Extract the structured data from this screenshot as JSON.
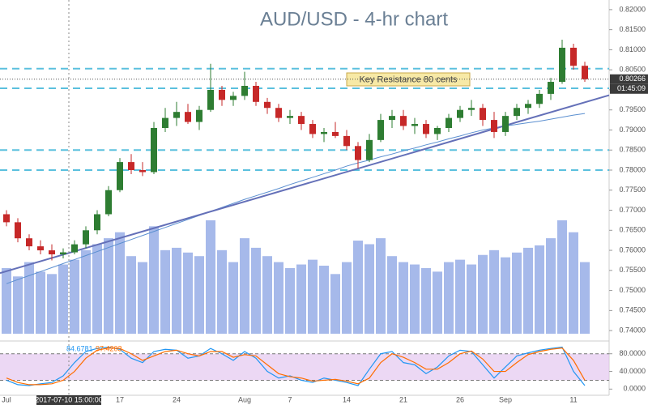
{
  "chart_data": {
    "type": "candlestick",
    "title": "AUD/USD - 4-hr chart",
    "categories": [
      "Jul",
      null,
      null,
      null,
      null,
      null,
      null,
      null,
      null,
      null,
      "17",
      null,
      null,
      null,
      null,
      "24",
      null,
      null,
      null,
      null,
      null,
      "Aug",
      null,
      null,
      null,
      "7",
      null,
      null,
      null,
      null,
      "14",
      null,
      null,
      null,
      null,
      "21",
      null,
      null,
      null,
      null,
      "26",
      null,
      null,
      null,
      "Sep",
      null,
      null,
      null,
      null,
      null,
      "11",
      null
    ],
    "open": [
      0.769,
      0.767,
      0.763,
      0.761,
      0.76,
      0.759,
      0.7595,
      0.7615,
      0.765,
      0.769,
      0.775,
      0.782,
      0.78,
      0.7795,
      0.7905,
      0.793,
      0.7945,
      0.792,
      0.795,
      0.8,
      0.7975,
      0.7985,
      0.801,
      0.797,
      0.7955,
      0.793,
      0.7935,
      0.7915,
      0.789,
      0.7895,
      0.7885,
      0.786,
      0.7825,
      0.7875,
      0.7925,
      0.7935,
      0.791,
      0.7915,
      0.789,
      0.7905,
      0.793,
      0.795,
      0.7955,
      0.7925,
      0.7895,
      0.7935,
      0.7955,
      0.7965,
      0.799,
      0.802,
      0.8105,
      0.806
    ],
    "high": [
      0.77,
      0.768,
      0.764,
      0.7625,
      0.7615,
      0.7605,
      0.7625,
      0.766,
      0.77,
      0.776,
      0.783,
      0.784,
      0.782,
      0.792,
      0.7955,
      0.797,
      0.7965,
      0.796,
      0.8065,
      0.801,
      0.7995,
      0.8045,
      0.802,
      0.798,
      0.7965,
      0.795,
      0.7945,
      0.7925,
      0.7905,
      0.792,
      0.79,
      0.787,
      0.789,
      0.794,
      0.795,
      0.795,
      0.793,
      0.7925,
      0.791,
      0.794,
      0.796,
      0.7975,
      0.7965,
      0.7945,
      0.7945,
      0.7965,
      0.7975,
      0.8,
      0.803,
      0.8125,
      0.8115,
      0.807
    ],
    "low": [
      0.766,
      0.762,
      0.76,
      0.759,
      0.7575,
      0.758,
      0.759,
      0.7605,
      0.764,
      0.7685,
      0.7745,
      0.779,
      0.7785,
      0.779,
      0.7895,
      0.791,
      0.7915,
      0.79,
      0.7945,
      0.796,
      0.796,
      0.7975,
      0.796,
      0.794,
      0.792,
      0.7915,
      0.79,
      0.788,
      0.787,
      0.788,
      0.785,
      0.7805,
      0.782,
      0.787,
      0.7905,
      0.79,
      0.789,
      0.788,
      0.7875,
      0.7895,
      0.792,
      0.7935,
      0.791,
      0.788,
      0.7885,
      0.7925,
      0.794,
      0.7955,
      0.7975,
      0.8015,
      0.805,
      0.802
    ],
    "close": [
      0.767,
      0.763,
      0.761,
      0.76,
      0.759,
      0.7595,
      0.7615,
      0.765,
      0.769,
      0.775,
      0.782,
      0.78,
      0.7795,
      0.7905,
      0.793,
      0.7945,
      0.792,
      0.795,
      0.8,
      0.7975,
      0.7985,
      0.801,
      0.797,
      0.7955,
      0.793,
      0.7935,
      0.7915,
      0.789,
      0.7895,
      0.7885,
      0.786,
      0.7825,
      0.7875,
      0.7925,
      0.7935,
      0.791,
      0.7915,
      0.789,
      0.7905,
      0.793,
      0.795,
      0.7955,
      0.7925,
      0.7895,
      0.7935,
      0.7955,
      0.7965,
      0.799,
      0.802,
      0.8105,
      0.806,
      0.80266
    ],
    "color_up": "#2e7d32",
    "color_down": "#c62828",
    "ylim": [
      0.7376,
      0.8224
    ],
    "yticks": [
      {
        "value": 0.74,
        "label": "0.74000"
      },
      {
        "value": 0.745,
        "label": "0.74500"
      },
      {
        "value": 0.75,
        "label": "0.75000"
      },
      {
        "value": 0.755,
        "label": "0.75500"
      },
      {
        "value": 0.76,
        "label": "0.76000"
      },
      {
        "value": 0.765,
        "label": "0.76500"
      },
      {
        "value": 0.77,
        "label": "0.77000"
      },
      {
        "value": 0.775,
        "label": "0.77500"
      },
      {
        "value": 0.78,
        "label": "0.78000"
      },
      {
        "value": 0.785,
        "label": "0.78500"
      },
      {
        "value": 0.79,
        "label": "0.79000"
      },
      {
        "value": 0.795,
        "label": "0.79500"
      },
      {
        "value": 0.8,
        "label": "0.80000"
      },
      {
        "value": 0.805,
        "label": "0.80500"
      },
      {
        "value": 0.81,
        "label": "0.81000"
      },
      {
        "value": 0.815,
        "label": "0.81500"
      },
      {
        "value": 0.82,
        "label": "0.82000"
      }
    ],
    "volume": {
      "color": "#5c7fd8",
      "values": [
        55,
        48,
        60,
        52,
        50,
        58,
        62,
        70,
        75,
        80,
        85,
        65,
        60,
        90,
        70,
        72,
        68,
        65,
        95,
        70,
        60,
        80,
        72,
        65,
        60,
        55,
        58,
        62,
        57,
        50,
        60,
        78,
        75,
        80,
        65,
        60,
        58,
        55,
        52,
        60,
        62,
        58,
        66,
        70,
        64,
        68,
        72,
        74,
        80,
        95,
        85,
        60
      ]
    },
    "moving_average": {
      "color": "#5b8fd0",
      "values": [
        0.7517,
        0.7527,
        0.7537,
        0.7547,
        0.7557,
        0.7567,
        0.7577,
        0.7587,
        0.7597,
        0.7607,
        0.7617,
        0.7627,
        0.7637,
        0.7647,
        0.7657,
        0.7667,
        0.7677,
        0.7687,
        0.7697,
        0.7707,
        0.7717,
        0.7727,
        0.7736,
        0.7745,
        0.7754,
        0.7764,
        0.7773,
        0.7782,
        0.7791,
        0.78,
        0.781,
        0.7818,
        0.7825,
        0.7833,
        0.784,
        0.7848,
        0.7855,
        0.7863,
        0.787,
        0.7878,
        0.7885,
        0.7893,
        0.79,
        0.7905,
        0.791,
        0.7914,
        0.7918,
        0.7922,
        0.7927,
        0.7932,
        0.7937,
        0.7941
      ]
    },
    "trendline": {
      "color": "#6470b8",
      "points": [
        {
          "index": 0,
          "price": 0.7548
        },
        {
          "index": 51,
          "price": 0.7969
        }
      ]
    },
    "levels": {
      "color": "#5bc0de",
      "values": [
        0.8053,
        0.8004,
        0.785,
        0.78
      ]
    },
    "annotation": "Key Resistance 80 cents",
    "last_price": {
      "value": 0.80266,
      "label": "0.80266"
    },
    "countdown": "01:45:09",
    "crosshair": {
      "index": 5,
      "label": "2017-07-10 15:00:00"
    },
    "stochastic": {
      "ylim": [
        -14,
        107
      ],
      "yticks": [
        {
          "value": 0,
          "label": "0.0000"
        },
        {
          "value": 40,
          "label": "40.0000"
        },
        {
          "value": 80,
          "label": "80.0000"
        }
      ],
      "bands": [
        20,
        80
      ],
      "legend_values": [
        "84.6781",
        "97.4203"
      ],
      "series": [
        {
          "color": "#2196f3",
          "values": [
            20,
            10,
            8,
            12,
            15,
            30,
            60,
            85,
            92,
            95,
            90,
            70,
            60,
            85,
            90,
            88,
            70,
            75,
            92,
            80,
            65,
            85,
            70,
            40,
            25,
            30,
            20,
            15,
            25,
            20,
            15,
            8,
            45,
            80,
            85,
            60,
            55,
            35,
            50,
            75,
            88,
            85,
            55,
            25,
            50,
            75,
            82,
            88,
            92,
            95,
            40,
            8
          ]
        },
        {
          "color": "#ff6d00",
          "values": [
            25,
            15,
            10,
            10,
            12,
            20,
            40,
            70,
            88,
            93,
            92,
            80,
            65,
            75,
            85,
            88,
            80,
            75,
            85,
            85,
            72,
            78,
            75,
            55,
            35,
            28,
            25,
            18,
            20,
            22,
            18,
            12,
            25,
            60,
            80,
            72,
            60,
            45,
            45,
            60,
            80,
            86,
            68,
            40,
            40,
            60,
            78,
            85,
            90,
            93,
            65,
            20
          ]
        }
      ]
    }
  }
}
